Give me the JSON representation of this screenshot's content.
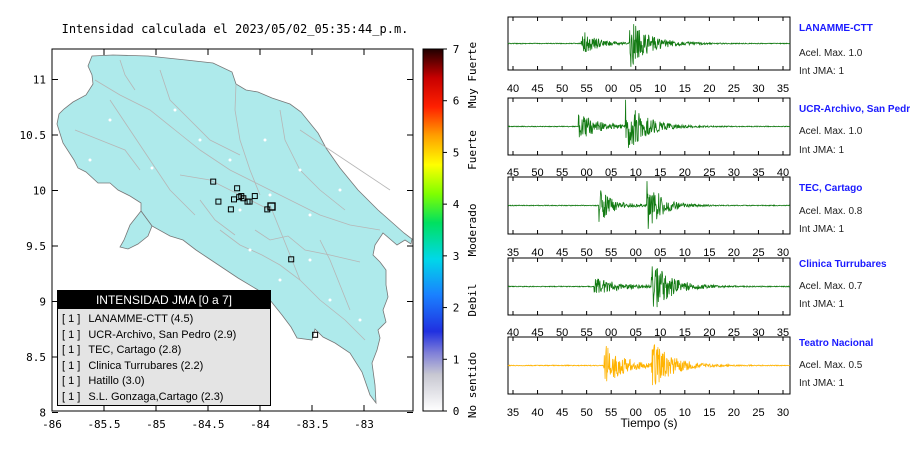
{
  "map": {
    "title": "Intensidad calculada el 2023/05/02_05:35:44_p.m.",
    "lon_ticks": [
      "-86",
      "-85.5",
      "-85",
      "-84.5",
      "-84",
      "-83.5",
      "-83"
    ],
    "lat_ticks": [
      "11",
      "10.5",
      "10",
      "9.5",
      "9",
      "8.5",
      "8"
    ],
    "colorbar_ticks": [
      "0",
      "1",
      "2",
      "3",
      "4",
      "5",
      "6",
      "7"
    ],
    "colorbar_labels": [
      "No sentido",
      "Debil",
      "Moderado",
      "Fuerte",
      "Muy Fuerte"
    ],
    "legend": {
      "title": "INTENSIDAD JMA [0 a 7]",
      "rows": [
        {
          "bracket": "[ 1 ]",
          "text": "LANAMME-CTT (4.5)"
        },
        {
          "bracket": "[ 1 ]",
          "text": "UCR-Archivo, San Pedro (2.9)"
        },
        {
          "bracket": "[ 1 ]",
          "text": "TEC, Cartago (2.8)"
        },
        {
          "bracket": "[ 1 ]",
          "text": "Clinica Turrubares (2.2)"
        },
        {
          "bracket": "[ 1 ]",
          "text": "Hatillo (3.0)"
        },
        {
          "bracket": "[ 1 ]",
          "text": "S.L. Gonzaga,Cartago (2.3)"
        }
      ]
    }
  },
  "chart_data": [
    {
      "type": "line",
      "title": "",
      "xlabel": "",
      "ylabel": "",
      "note": "Seismic intensity map of Costa Rica; station markers (small squares) placed at longitude/latitude",
      "xlim": [
        -86,
        -82.6
      ],
      "ylim": [
        8,
        11.3
      ],
      "stations": [
        {
          "lon": -84.25,
          "lat": 9.92
        },
        {
          "lon": -84.2,
          "lat": 9.94
        },
        {
          "lon": -84.16,
          "lat": 9.93
        },
        {
          "lon": -84.12,
          "lat": 9.9
        },
        {
          "lon": -84.05,
          "lat": 9.95
        },
        {
          "lon": -83.93,
          "lat": 9.83
        },
        {
          "lon": -84.4,
          "lat": 9.9
        },
        {
          "lon": -84.45,
          "lat": 10.08
        },
        {
          "lon": -84.22,
          "lat": 10.02
        },
        {
          "lon": -84.18,
          "lat": 9.95
        },
        {
          "lon": -84.28,
          "lat": 9.83
        },
        {
          "lon": -84.1,
          "lat": 9.9
        },
        {
          "lon": -83.7,
          "lat": 9.38
        },
        {
          "lon": -83.47,
          "lat": 8.7
        }
      ]
    },
    {
      "type": "line",
      "name": "LANAMME-CTT",
      "accel_label": "Acel. Max. 1.0",
      "jma_label": "Int JMA: 1",
      "color": "#127a12",
      "x_ticks": [
        "40",
        "45",
        "50",
        "55",
        "00",
        "05",
        "10",
        "15",
        "20",
        "25",
        "30",
        "35"
      ],
      "x_range_sec": [
        40,
        98
      ],
      "bursts": [
        {
          "t": 55,
          "amp": 0.6,
          "decay": 3
        },
        {
          "t": 65,
          "amp": 1.0,
          "decay": 4
        }
      ]
    },
    {
      "type": "line",
      "name": "UCR-Archivo, San Pedro",
      "accel_label": "Acel. Max. 1.0",
      "jma_label": "Int JMA: 1",
      "color": "#127a12",
      "x_ticks": [
        "45",
        "50",
        "55",
        "00",
        "05",
        "10",
        "15",
        "20",
        "25",
        "30",
        "35",
        "40"
      ],
      "x_range_sec": [
        40,
        100
      ],
      "bursts": [
        {
          "t": 55,
          "amp": 0.55,
          "decay": 4
        },
        {
          "t": 65,
          "amp": 1.0,
          "decay": 4
        }
      ]
    },
    {
      "type": "line",
      "name": "TEC, Cartago",
      "accel_label": "Acel. Max. 0.8",
      "jma_label": "Int JMA: 1",
      "color": "#127a12",
      "x_ticks": [
        "35",
        "40",
        "45",
        "50",
        "55",
        "00",
        "05",
        "10",
        "15",
        "20",
        "25",
        "30"
      ],
      "x_range_sec": [
        35,
        94
      ],
      "bursts": [
        {
          "t": 54,
          "amp": 0.65,
          "decay": 3
        },
        {
          "t": 64,
          "amp": 1.0,
          "decay": 3
        }
      ]
    },
    {
      "type": "line",
      "name": "Clinica Turrubares",
      "accel_label": "Acel. Max. 0.7",
      "jma_label": "Int JMA: 1",
      "color": "#127a12",
      "x_ticks": [
        "40",
        "45",
        "50",
        "55",
        "00",
        "05",
        "10",
        "15",
        "20",
        "25",
        "30",
        "35"
      ],
      "x_range_sec": [
        38,
        97
      ],
      "bursts": [
        {
          "t": 56,
          "amp": 0.35,
          "decay": 5
        },
        {
          "t": 68,
          "amp": 1.0,
          "decay": 4
        }
      ]
    },
    {
      "type": "line",
      "name": "Teatro Nacional",
      "accel_label": "Acel. Max. 0.5",
      "jma_label": "Int JMA: 1",
      "color": "#ffb300",
      "xlabel": "Tiempo (s)",
      "x_ticks": [
        "35",
        "40",
        "45",
        "50",
        "55",
        "00",
        "05",
        "10",
        "15",
        "20",
        "25",
        "30"
      ],
      "x_range_sec": [
        35,
        94
      ],
      "bursts": [
        {
          "t": 55,
          "amp": 0.85,
          "decay": 4
        },
        {
          "t": 65,
          "amp": 0.95,
          "decay": 4
        }
      ]
    }
  ]
}
